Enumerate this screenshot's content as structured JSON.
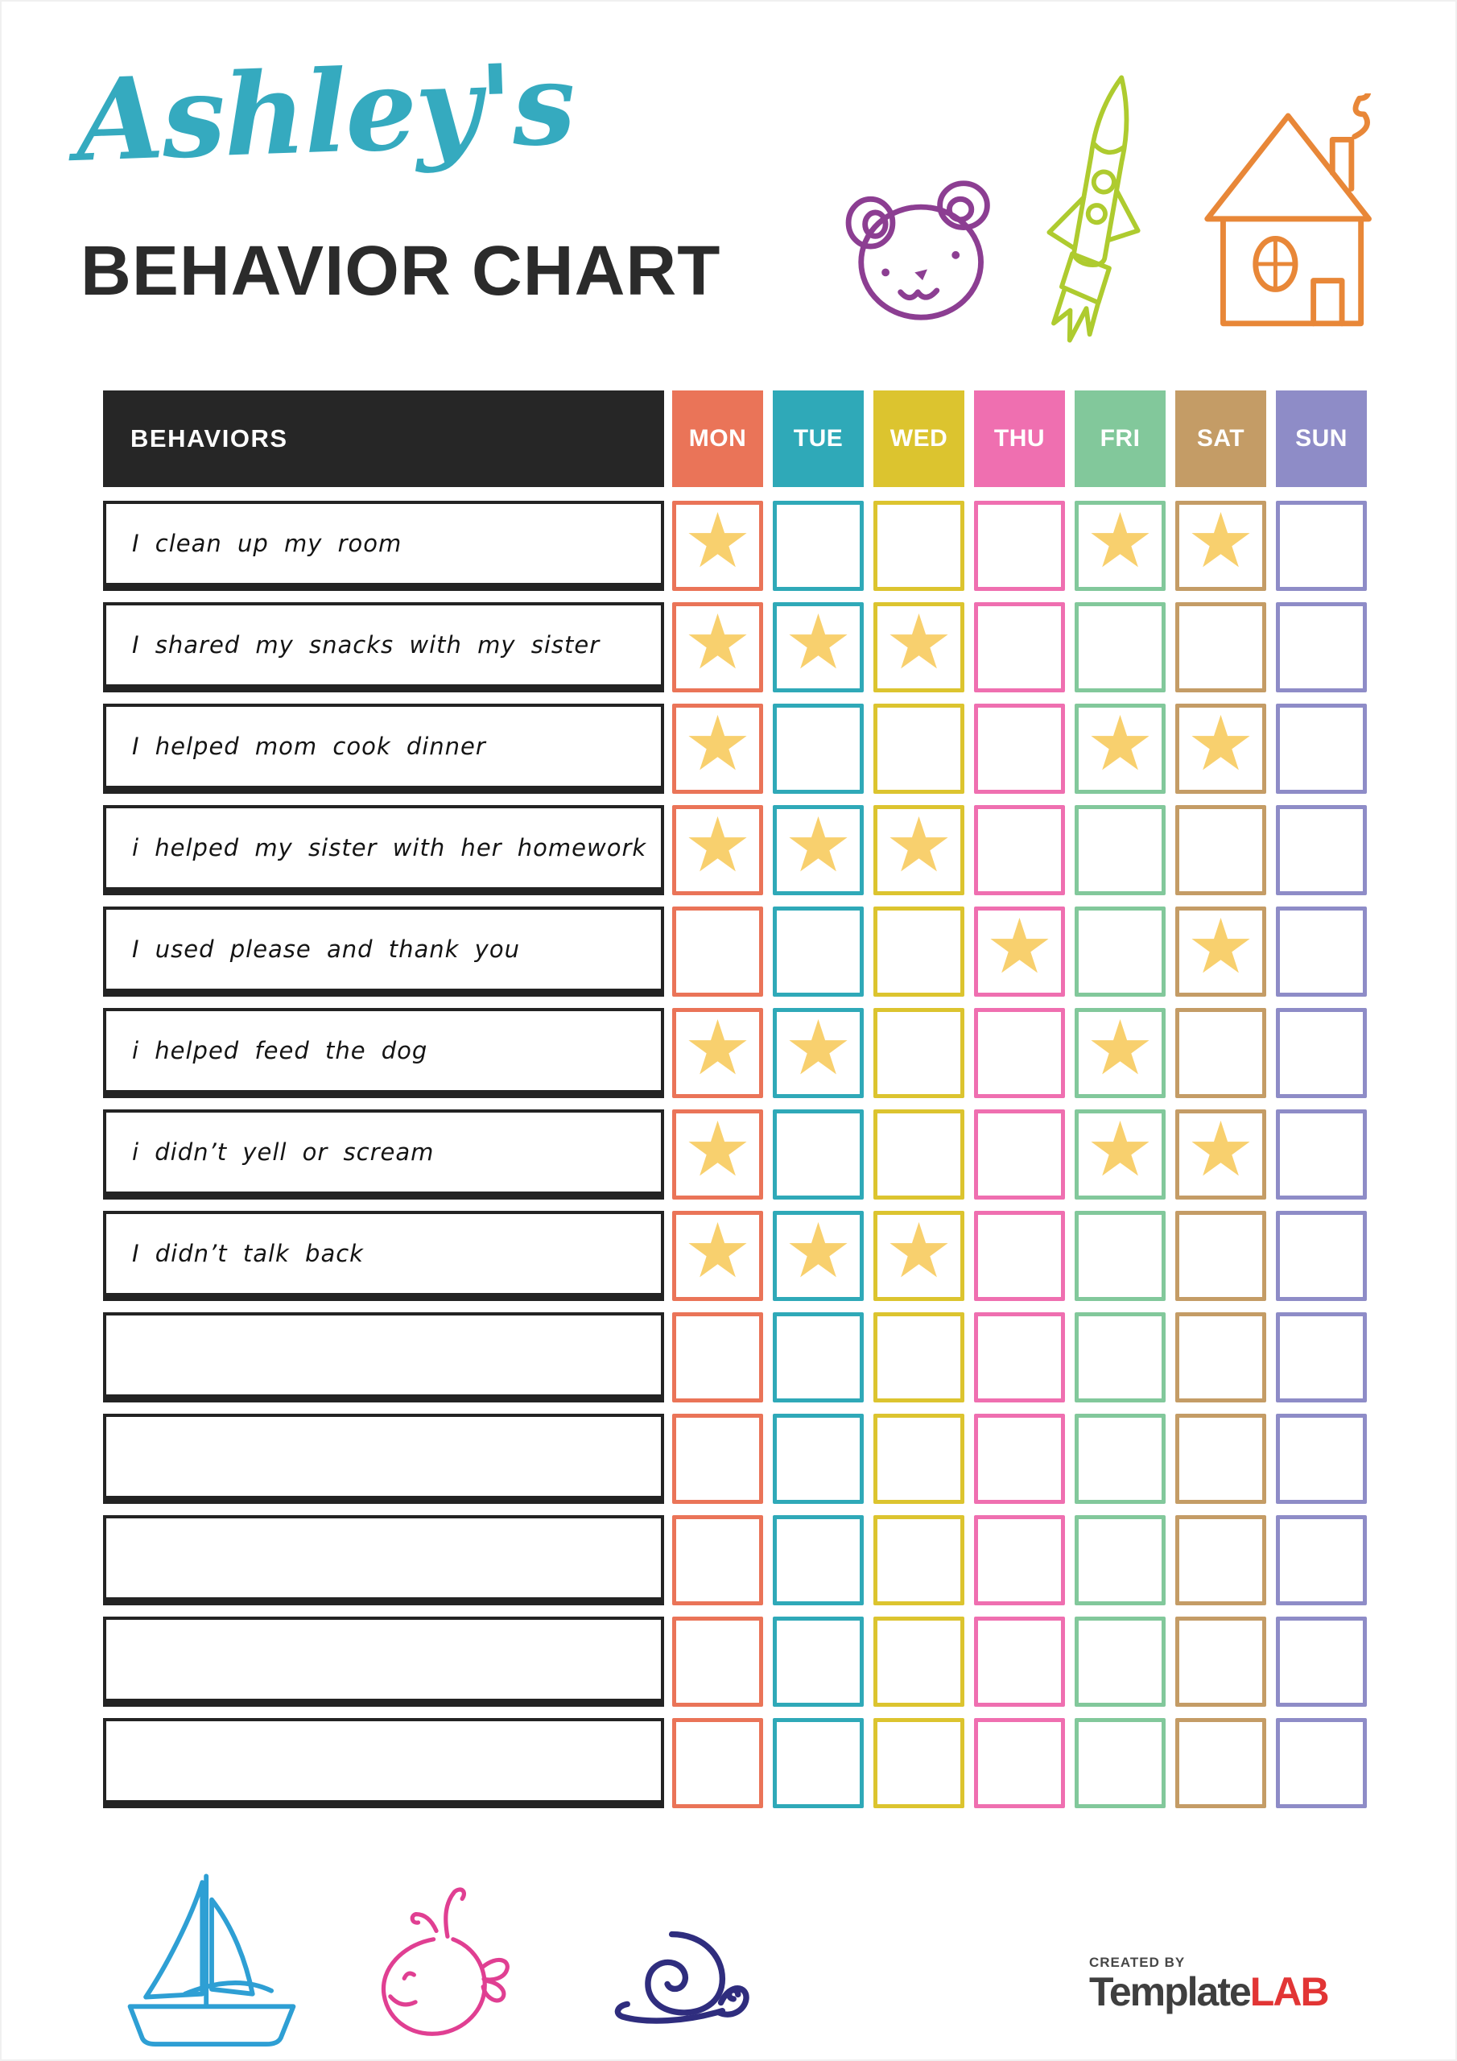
{
  "header": {
    "name_script": "Ashley's",
    "title": "BEHAVIOR CHART"
  },
  "colors": {
    "title_script": "#35aabf",
    "title_main": "#2b2b2b",
    "behaviors_header_bg": "#262626",
    "star": "#f8d06e"
  },
  "table": {
    "behaviors_label": "BEHAVIORS",
    "days": [
      "MON",
      "TUE",
      "WED",
      "THU",
      "FRI",
      "SAT",
      "SUN"
    ],
    "day_colors": [
      "#ea7458",
      "#2fa9b8",
      "#dcc42f",
      "#ef6fb0",
      "#82c89b",
      "#c49c66",
      "#8e8cc7"
    ],
    "star_glyph": "★",
    "rows": [
      {
        "behavior": "I clean up my room",
        "stars": [
          1,
          0,
          0,
          0,
          1,
          1,
          0
        ]
      },
      {
        "behavior": "I shared my snacks with my sister",
        "stars": [
          1,
          1,
          1,
          0,
          0,
          0,
          0
        ]
      },
      {
        "behavior": "I helped mom cook dinner",
        "stars": [
          1,
          0,
          0,
          0,
          1,
          1,
          0
        ]
      },
      {
        "behavior": "i helped my sister with her homework",
        "stars": [
          1,
          1,
          1,
          0,
          0,
          0,
          0
        ]
      },
      {
        "behavior": "I used please and thank you",
        "stars": [
          0,
          0,
          0,
          1,
          0,
          1,
          0
        ]
      },
      {
        "behavior": "i helped feed the dog",
        "stars": [
          1,
          1,
          0,
          0,
          1,
          0,
          0
        ]
      },
      {
        "behavior": "i didn’t yell or scream",
        "stars": [
          1,
          0,
          0,
          0,
          1,
          1,
          0
        ]
      },
      {
        "behavior": "I didn’t talk back",
        "stars": [
          1,
          1,
          1,
          0,
          0,
          0,
          0
        ]
      },
      {
        "behavior": "",
        "stars": [
          0,
          0,
          0,
          0,
          0,
          0,
          0
        ]
      },
      {
        "behavior": "",
        "stars": [
          0,
          0,
          0,
          0,
          0,
          0,
          0
        ]
      },
      {
        "behavior": "",
        "stars": [
          0,
          0,
          0,
          0,
          0,
          0,
          0
        ]
      },
      {
        "behavior": "",
        "stars": [
          0,
          0,
          0,
          0,
          0,
          0,
          0
        ]
      },
      {
        "behavior": "",
        "stars": [
          0,
          0,
          0,
          0,
          0,
          0,
          0
        ]
      }
    ]
  },
  "doodles": {
    "top": [
      "bear",
      "rocket",
      "house"
    ],
    "bottom": [
      "sailboat",
      "whale",
      "snail"
    ],
    "colors": {
      "bear": "#8c3e92",
      "rocket": "#aecb2f",
      "house": "#e88738",
      "sailboat": "#2e9fd4",
      "whale": "#e03f92",
      "snail": "#2f2d7e"
    }
  },
  "footer": {
    "created_by": "CREATED BY",
    "brand_primary": "Template",
    "brand_accent": "LAB"
  }
}
